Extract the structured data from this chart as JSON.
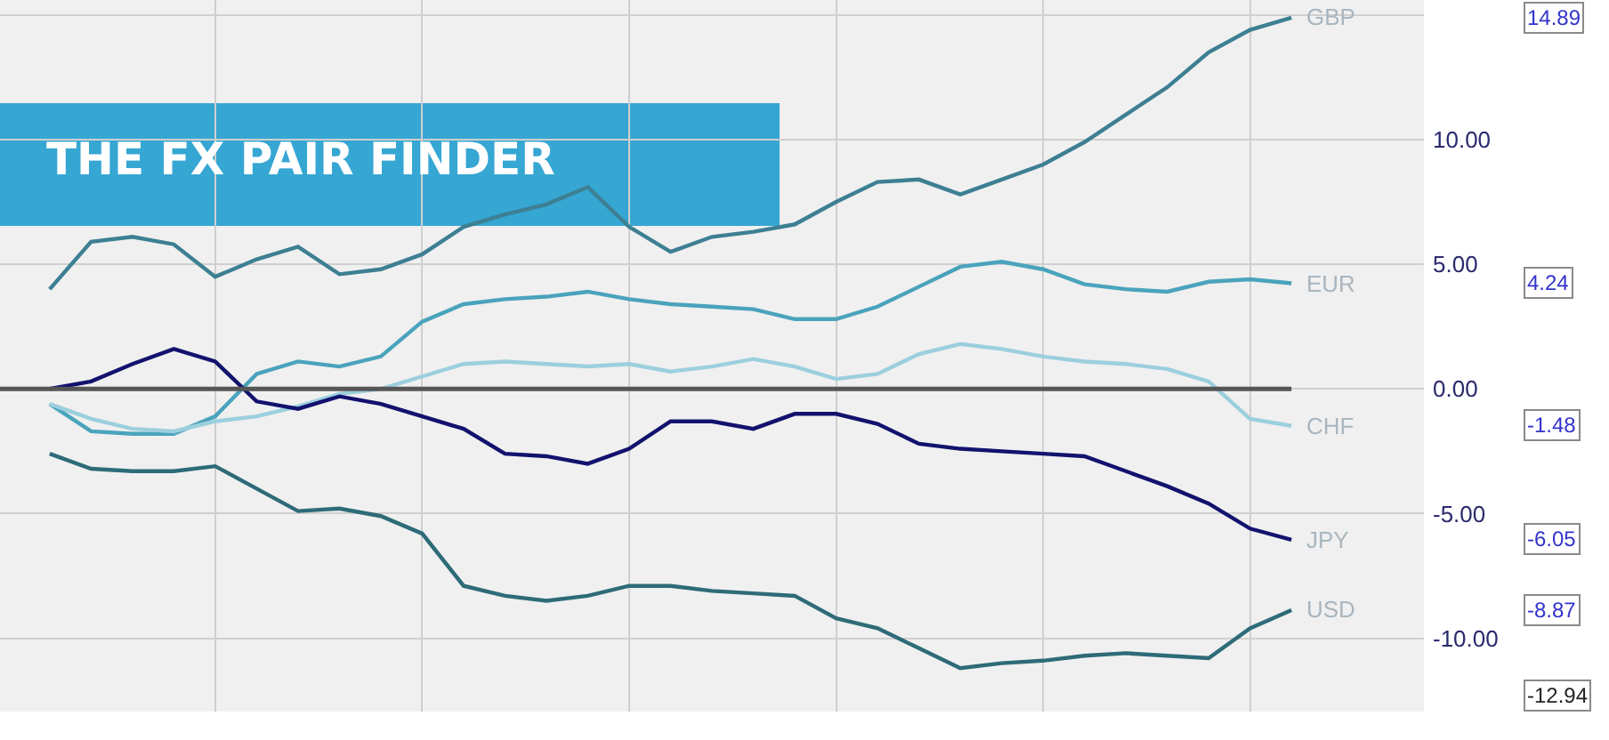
{
  "chart_data": {
    "type": "line",
    "title": "THE FX PAIR FINDER",
    "categories": [
      null,
      null,
      null,
      null,
      null,
      null,
      null,
      null,
      null,
      null,
      null,
      null,
      null,
      null,
      null,
      null,
      null,
      null,
      null,
      null,
      null,
      null,
      null,
      null,
      null,
      null,
      null,
      null,
      null,
      null,
      null
    ],
    "ylim": [
      -12.94,
      15.6
    ],
    "yticks": [
      {
        "value": 15,
        "label": null
      },
      {
        "value": 10,
        "label": "10.00"
      },
      {
        "value": 5,
        "label": "5.00"
      },
      {
        "value": 0,
        "label": "0.00"
      },
      {
        "value": -5,
        "label": "-5.00"
      },
      {
        "value": -10,
        "label": "-10.00"
      }
    ],
    "grid": true,
    "legend": false,
    "marker": "none",
    "line_style": "solid",
    "tick_labels": "y",
    "ref_lines": [
      {
        "axis": "y",
        "value": 0,
        "color": "#555555"
      }
    ],
    "annotations": [
      "-12.94",
      "14.89",
      "4.24",
      "-1.48",
      "-6.05",
      "-8.87"
    ],
    "series": [
      {
        "name": "GBP",
        "color": "#3d7f93",
        "values": [
          4.0,
          5.9,
          6.1,
          5.8,
          4.5,
          5.2,
          5.7,
          4.6,
          4.8,
          5.4,
          6.5,
          7.0,
          7.4,
          8.1,
          6.5,
          5.5,
          6.1,
          6.3,
          6.6,
          7.5,
          8.3,
          8.4,
          7.8,
          8.4,
          9.0,
          9.9,
          11.0,
          12.1,
          13.5,
          14.4,
          14.89
        ]
      },
      {
        "name": "EUR",
        "color": "#4aa3bc",
        "values": [
          -0.6,
          -1.7,
          -1.8,
          -1.8,
          -1.1,
          0.6,
          1.1,
          0.9,
          1.3,
          2.7,
          3.4,
          3.6,
          3.7,
          3.9,
          3.6,
          3.4,
          3.3,
          3.2,
          2.8,
          2.8,
          3.3,
          4.1,
          4.9,
          5.1,
          4.8,
          4.2,
          4.0,
          3.9,
          4.3,
          4.4,
          4.24
        ]
      },
      {
        "name": "CHF",
        "color": "#9ccfde",
        "values": [
          -0.6,
          -1.2,
          -1.6,
          -1.7,
          -1.3,
          -1.1,
          -0.7,
          -0.2,
          0.0,
          0.5,
          1.0,
          1.1,
          1.0,
          0.9,
          1.0,
          0.7,
          0.9,
          1.2,
          0.9,
          0.4,
          0.6,
          1.4,
          1.8,
          1.6,
          1.3,
          1.1,
          1.0,
          0.8,
          0.3,
          -1.2,
          -1.48
        ]
      },
      {
        "name": "JPY",
        "color": "#12126e",
        "values": [
          0.0,
          0.3,
          1.0,
          1.6,
          1.1,
          -0.5,
          -0.8,
          -0.3,
          -0.6,
          -1.1,
          -1.6,
          -2.6,
          -2.7,
          -3.0,
          -2.4,
          -1.3,
          -1.3,
          -1.6,
          -1.0,
          -1.0,
          -1.4,
          -2.2,
          -2.4,
          -2.5,
          -2.6,
          -2.7,
          -3.3,
          -3.9,
          -4.6,
          -5.6,
          -6.05
        ]
      },
      {
        "name": "USD",
        "color": "#2e6b78",
        "values": [
          -2.6,
          -3.2,
          -3.3,
          -3.3,
          -3.1,
          -4.0,
          -4.9,
          -4.8,
          -5.1,
          -5.8,
          -7.9,
          -8.3,
          -8.5,
          -8.3,
          -7.9,
          -7.9,
          -8.1,
          -8.2,
          -8.3,
          -9.2,
          -9.6,
          -10.4,
          -11.2,
          -11.0,
          -10.9,
          -10.7,
          -10.6,
          -10.7,
          -10.8,
          -9.6,
          -8.87
        ]
      }
    ]
  }
}
